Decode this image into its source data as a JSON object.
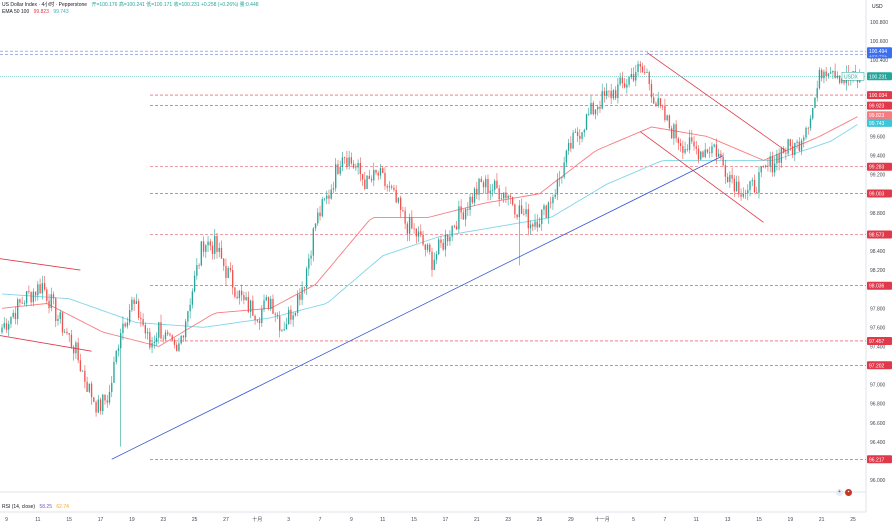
{
  "legend": {
    "symbol": "US Dollar Index · 4小时 · Pepperstone",
    "ohlc": "开=100.176  高=100.241  低=100.171  收=100.231  +0.258 (+0.26%)  量:0.448",
    "ema_label": "EMA 50 100",
    "ema50_value": "99.823",
    "ema100_value": "99.743"
  },
  "rsi_legend": {
    "label": "RSI (14, close)",
    "v1": "58.25",
    "v2": "62.74"
  },
  "currency": "USD",
  "colors": {
    "up": "#26a69a",
    "down": "#ef5350",
    "ema50": "#f77c80",
    "ema100": "#7fd6e8",
    "trendline": "#3b5bd6",
    "channel": "#e0394a",
    "level_line": "#e0394a",
    "price_label": "#3b6ef0",
    "current_label": "#26a69a",
    "grid": "#f0f3fa"
  },
  "chart_data": {
    "type": "candlestick",
    "title": "",
    "ylim": [
      96.0,
      100.8
    ],
    "y_ticks": [
      {
        "label": "100.800",
        "v": 100.8
      },
      {
        "label": "100.600",
        "v": 100.6
      },
      {
        "label": "100.400",
        "v": 100.4
      },
      {
        "label": "99.800",
        "v": 99.8
      },
      {
        "label": "99.600",
        "v": 99.6
      },
      {
        "label": "99.400",
        "v": 99.4
      },
      {
        "label": "99.200",
        "v": 99.2
      },
      {
        "label": "98.800",
        "v": 98.8
      },
      {
        "label": "98.400",
        "v": 98.4
      },
      {
        "label": "98.200",
        "v": 98.2
      },
      {
        "label": "97.800",
        "v": 97.8
      },
      {
        "label": "97.600",
        "v": 97.6
      },
      {
        "label": "97.400",
        "v": 97.4
      },
      {
        "label": "97.000",
        "v": 97.0
      },
      {
        "label": "96.800",
        "v": 96.8
      },
      {
        "label": "96.600",
        "v": 96.6
      },
      {
        "label": "96.400",
        "v": 96.4
      },
      {
        "label": "96.000",
        "v": 96.0
      }
    ],
    "x_ticks": [
      "9",
      "11",
      "15",
      "17",
      "19",
      "23",
      "25",
      "27",
      "十月",
      "3",
      "7",
      "9",
      "11",
      "15",
      "17",
      "21",
      "23",
      "25",
      "29",
      "十一月",
      "5",
      "7",
      "11",
      "13",
      "15",
      "19",
      "21",
      "25"
    ],
    "x_tick_candle": [
      2,
      16,
      30,
      44,
      58,
      72,
      86,
      100,
      114,
      128,
      142,
      156,
      170,
      184,
      198,
      212,
      226,
      240,
      254,
      268,
      282,
      296,
      310,
      324,
      338,
      352,
      366,
      380
    ],
    "level_lines": [
      {
        "v": 100.461,
        "label": "100.461",
        "style": "dash-blue"
      },
      {
        "v": 100.494,
        "label": "100.494",
        "style": "dash-blue"
      },
      {
        "v": 100.034,
        "label": "100.034"
      },
      {
        "v": 99.923,
        "label": "99.923"
      },
      {
        "v": 99.283,
        "label": "99.283"
      },
      {
        "v": 99.003,
        "label": "99.003"
      },
      {
        "v": 98.573,
        "label": "98.573"
      },
      {
        "v": 98.036,
        "label": "98.036"
      },
      {
        "v": 97.457,
        "label": "97.457"
      },
      {
        "v": 97.202,
        "label": "97.202"
      },
      {
        "v": 96.217,
        "label": "96.217"
      }
    ],
    "price_tags": [
      {
        "v": 100.231,
        "label": "100.231",
        "kind": "current",
        "prefix": "USDX"
      },
      {
        "v": 99.823,
        "label": "99.823",
        "kind": "ema50"
      },
      {
        "v": 99.743,
        "label": "99.743",
        "kind": "ema100"
      }
    ],
    "ohlc_anchors": [
      [
        0,
        97.6
      ],
      [
        10,
        97.9
      ],
      [
        18,
        98.05
      ],
      [
        25,
        97.7
      ],
      [
        32,
        97.4
      ],
      [
        38,
        97.0
      ],
      [
        43,
        96.75
      ],
      [
        48,
        96.9
      ],
      [
        53,
        97.6
      ],
      [
        58,
        97.85
      ],
      [
        62,
        97.7
      ],
      [
        66,
        97.4
      ],
      [
        70,
        97.6
      ],
      [
        78,
        97.3
      ],
      [
        85,
        98.0
      ],
      [
        90,
        98.5
      ],
      [
        95,
        98.45
      ],
      [
        100,
        98.2
      ],
      [
        108,
        97.85
      ],
      [
        115,
        97.75
      ],
      [
        120,
        97.9
      ],
      [
        125,
        97.6
      ],
      [
        130,
        97.8
      ],
      [
        135,
        98.1
      ],
      [
        140,
        98.7
      ],
      [
        146,
        99.0
      ],
      [
        152,
        99.45
      ],
      [
        157,
        99.3
      ],
      [
        163,
        99.1
      ],
      [
        168,
        99.2
      ],
      [
        174,
        99.0
      ],
      [
        180,
        98.7
      ],
      [
        186,
        98.55
      ],
      [
        192,
        98.3
      ],
      [
        196,
        98.45
      ],
      [
        202,
        98.7
      ],
      [
        208,
        98.9
      ],
      [
        214,
        99.1
      ],
      [
        220,
        99.05
      ],
      [
        226,
        99.0
      ],
      [
        230,
        98.85
      ],
      [
        236,
        98.7
      ],
      [
        242,
        98.8
      ],
      [
        248,
        99.1
      ],
      [
        254,
        99.5
      ],
      [
        260,
        99.75
      ],
      [
        266,
        99.95
      ],
      [
        272,
        100.05
      ],
      [
        278,
        100.15
      ],
      [
        283,
        100.3
      ],
      [
        288,
        100.25
      ],
      [
        292,
        99.95
      ],
      [
        298,
        99.7
      ],
      [
        305,
        99.5
      ],
      [
        312,
        99.45
      ],
      [
        318,
        99.5
      ],
      [
        322,
        99.3
      ],
      [
        328,
        99.1
      ],
      [
        333,
        99.0
      ],
      [
        338,
        99.15
      ],
      [
        343,
        99.3
      ],
      [
        348,
        99.45
      ],
      [
        355,
        99.5
      ],
      [
        362,
        99.9
      ],
      [
        366,
        100.3
      ],
      [
        370,
        100.35
      ],
      [
        376,
        100.2
      ],
      [
        383,
        100.2
      ]
    ],
    "spike_lows": [
      [
        53,
        96.35
      ],
      [
        231,
        98.25
      ]
    ],
    "ema50_anchors": [
      [
        0,
        97.8
      ],
      [
        20,
        97.85
      ],
      [
        45,
        97.55
      ],
      [
        70,
        97.4
      ],
      [
        95,
        97.75
      ],
      [
        120,
        97.8
      ],
      [
        140,
        98.05
      ],
      [
        165,
        98.75
      ],
      [
        190,
        98.75
      ],
      [
        215,
        98.9
      ],
      [
        240,
        99.0
      ],
      [
        265,
        99.45
      ],
      [
        290,
        99.7
      ],
      [
        315,
        99.6
      ],
      [
        340,
        99.35
      ],
      [
        365,
        99.6
      ],
      [
        383,
        99.82
      ]
    ],
    "ema100_anchors": [
      [
        0,
        97.95
      ],
      [
        30,
        97.9
      ],
      [
        60,
        97.65
      ],
      [
        90,
        97.6
      ],
      [
        120,
        97.7
      ],
      [
        145,
        97.85
      ],
      [
        170,
        98.35
      ],
      [
        195,
        98.55
      ],
      [
        220,
        98.65
      ],
      [
        245,
        98.75
      ],
      [
        270,
        99.1
      ],
      [
        295,
        99.35
      ],
      [
        320,
        99.35
      ],
      [
        345,
        99.35
      ],
      [
        370,
        99.55
      ],
      [
        383,
        99.74
      ]
    ],
    "trendline": [
      [
        49,
        96.217
      ],
      [
        322,
        99.4
      ]
    ],
    "channel_upper": [
      [
        288,
        100.48
      ],
      [
        350,
        99.45
      ]
    ],
    "channel_lower": [
      [
        285,
        99.65
      ],
      [
        340,
        98.7
      ]
    ],
    "old_channel_upper": [
      [
        -10,
        98.35
      ],
      [
        35,
        98.2
      ]
    ],
    "old_channel_lower": [
      [
        -10,
        97.55
      ],
      [
        40,
        97.35
      ]
    ]
  }
}
